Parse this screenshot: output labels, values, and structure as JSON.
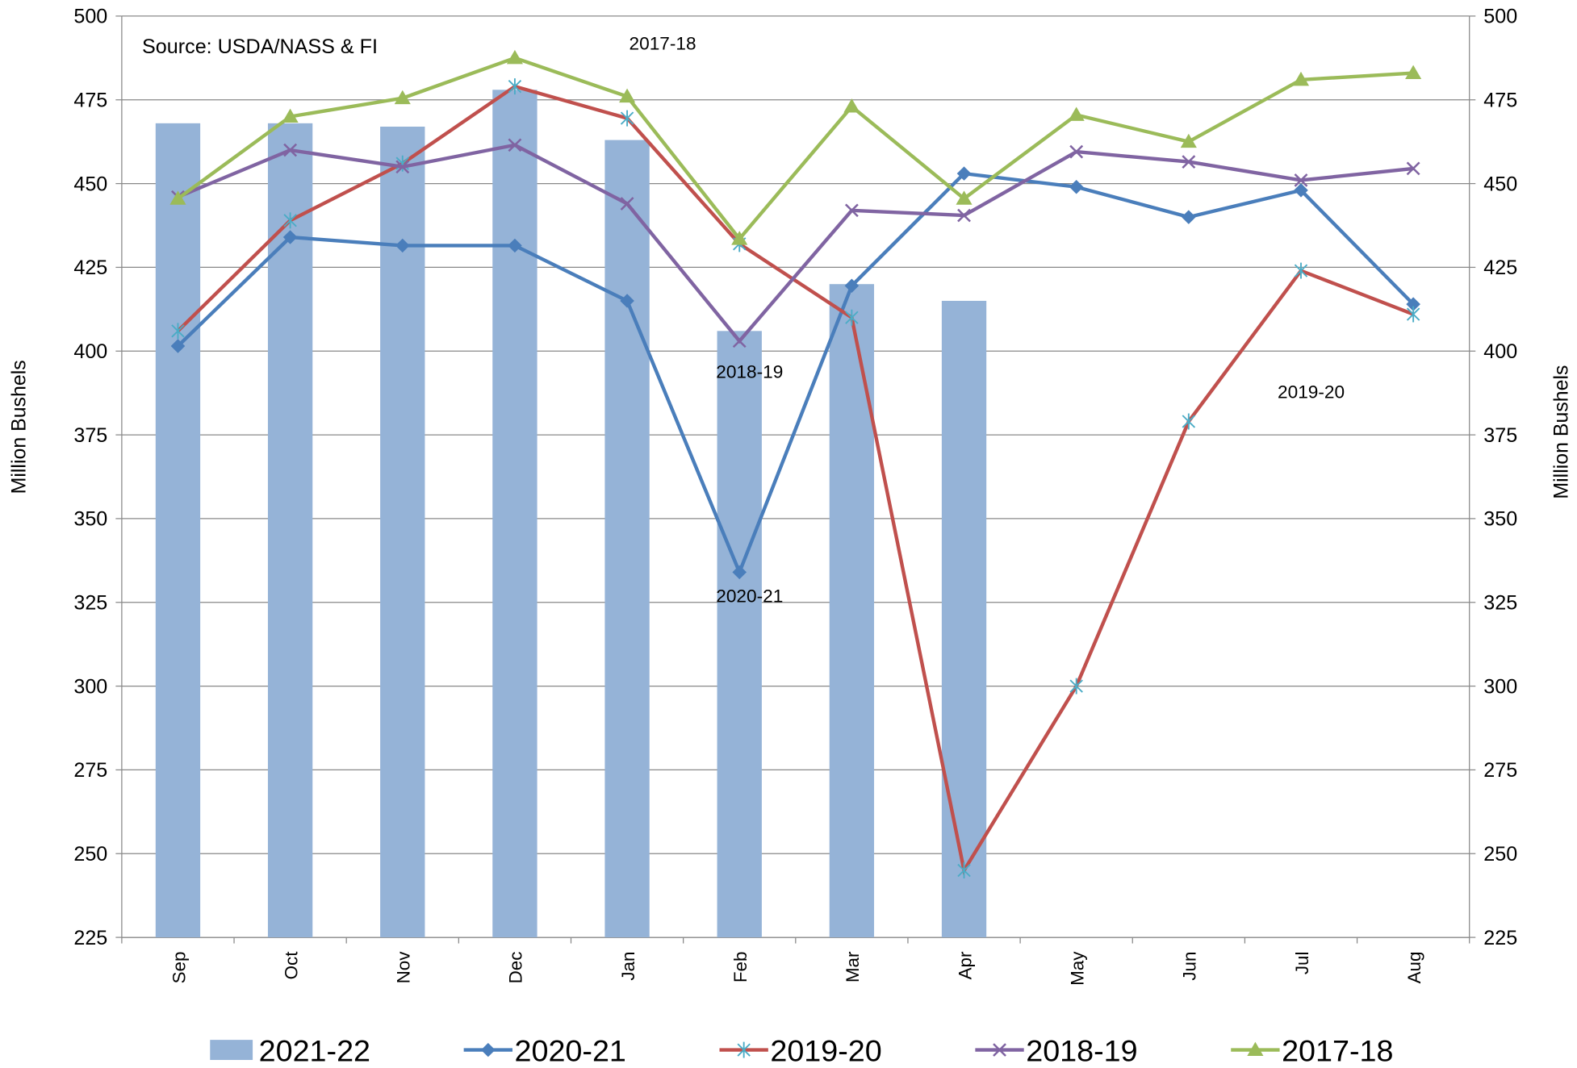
{
  "chart_data": {
    "type": "bar-line",
    "source": "Source: USDA/NASS & FI",
    "y_label": "Million Bushels",
    "y2_label": "Million Bushels",
    "categories": [
      "Sep",
      "Oct",
      "Nov",
      "Dec",
      "Jan",
      "Feb",
      "Mar",
      "Apr",
      "May",
      "Jun",
      "Jul",
      "Aug"
    ],
    "series": [
      {
        "name": "2021-22",
        "kind": "bar",
        "color": "#95b3d7",
        "values": [
          468,
          468,
          467,
          478,
          463,
          406,
          420,
          415,
          null,
          null,
          null,
          null
        ]
      },
      {
        "name": "2020-21",
        "kind": "line",
        "marker": "diamond",
        "color": "#4a7ebb",
        "values": [
          401.5,
          434,
          431.5,
          431.5,
          415,
          334,
          419.5,
          453,
          449,
          440,
          448,
          414
        ]
      },
      {
        "name": "2019-20",
        "kind": "line",
        "marker": "star",
        "color": "#c0504d",
        "values": [
          406,
          439,
          456,
          479,
          469.5,
          432,
          410,
          245,
          300,
          379,
          424,
          411
        ]
      },
      {
        "name": "2018-19",
        "kind": "line",
        "marker": "x",
        "color": "#8064a2",
        "values": [
          446,
          460,
          455,
          461.5,
          444,
          403,
          442,
          440.5,
          459.5,
          456.5,
          451,
          454.5
        ]
      },
      {
        "name": "2017-18",
        "kind": "line",
        "marker": "triangle",
        "color": "#9bbb59",
        "values": [
          445.5,
          470,
          475.5,
          487.5,
          476,
          433.5,
          473,
          445.5,
          470.5,
          462.5,
          481,
          483
        ]
      }
    ],
    "annotations": [
      {
        "text": "2017-18",
        "category": "Jan",
        "value": 490
      },
      {
        "text": "2018-19",
        "category": "Feb",
        "value": 392
      },
      {
        "text": "2020-21",
        "category": "Feb",
        "value": 325
      },
      {
        "text": "2019-20",
        "category": "Jul",
        "value": 386
      }
    ],
    "ylim": [
      225,
      500
    ],
    "yticks": [
      225,
      250,
      275,
      300,
      325,
      350,
      375,
      400,
      425,
      450,
      475,
      500
    ],
    "y2lim": [
      225,
      500
    ],
    "y2ticks": [
      225,
      250,
      275,
      300,
      325,
      350,
      375,
      400,
      425,
      450,
      475,
      500
    ],
    "grid": true,
    "legend": "bottom"
  }
}
